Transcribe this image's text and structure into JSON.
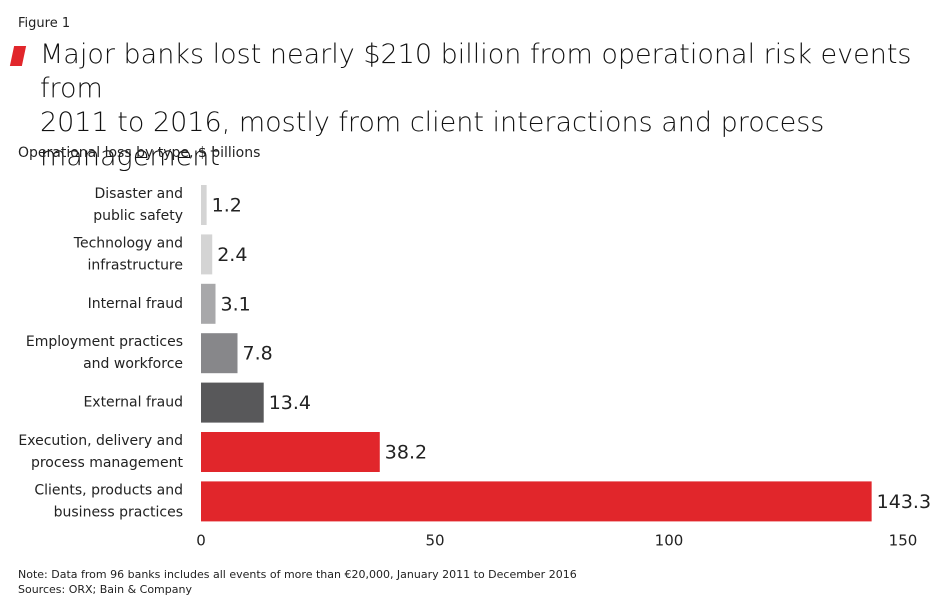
{
  "chart_data": {
    "type": "hbar",
    "figure_label": "Figure 1",
    "title": "Major banks lost nearly $210 billion from operational risk events from\n2011 to 2016, mostly from client interactions and process management",
    "subtitle": "Operational loss by type, $ billions",
    "categories": [
      "Disaster and\npublic safety",
      "Technology and\ninfrastructure",
      "Internal fraud",
      "Employment practices\nand workforce",
      "External fraud",
      "Execution, delivery and\nprocess management",
      "Clients, products and\nbusiness practices"
    ],
    "values": [
      1.2,
      2.4,
      3.1,
      7.8,
      13.4,
      38.2,
      143.3
    ],
    "colors": [
      "#d4d4d4",
      "#d4d4d4",
      "#a8a8aa",
      "#87878a",
      "#58585a",
      "#e1262b",
      "#e1262b"
    ],
    "xlim": [
      0,
      150
    ],
    "xticks": [
      0,
      50,
      100,
      150
    ],
    "grid": false,
    "note": "Note: Data from 96 banks includes all events of more than €20,000, January 2011 to December 2016",
    "sources": "Sources: ORX; Bain & Company"
  }
}
